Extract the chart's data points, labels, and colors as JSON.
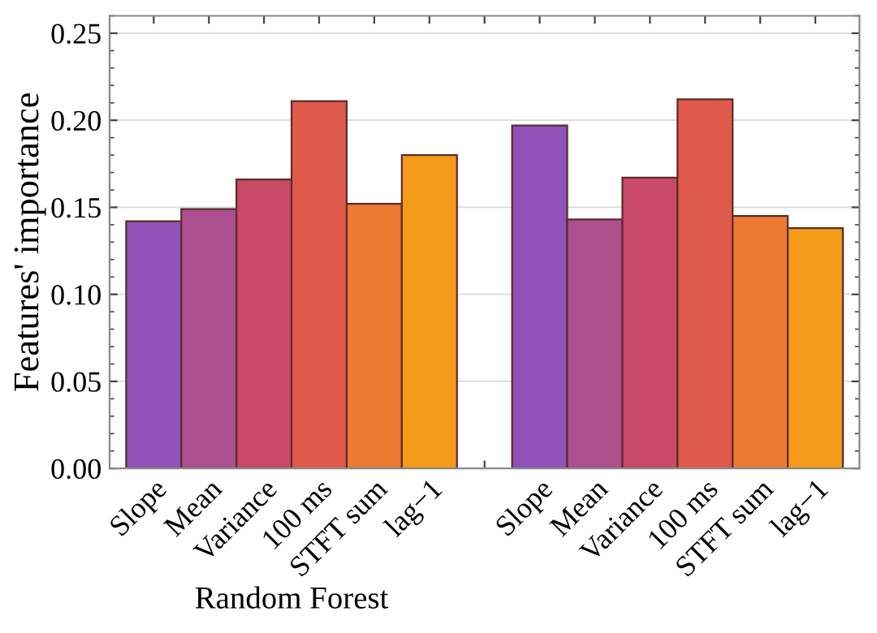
{
  "chart_data": {
    "type": "bar",
    "ylabel": "Features' importance",
    "categories": [
      "Slope",
      "Mean",
      "Variance",
      "100 ms",
      "STFT sum",
      "lag−1",
      null,
      "Slope",
      "Mean",
      "Variance",
      "100 ms",
      "STFT sum",
      "lag−1"
    ],
    "values": [
      0.142,
      0.149,
      0.166,
      0.211,
      0.152,
      0.18,
      null,
      0.197,
      0.143,
      0.167,
      0.212,
      0.145,
      0.138
    ],
    "colors": [
      "#8f52b8",
      "#ad4f8f",
      "#c84a66",
      "#e05a4b",
      "#ec7a33",
      "#f59b1a",
      null,
      "#8f52b8",
      "#ad4f8f",
      "#c84a66",
      "#e05a4b",
      "#ec7a33",
      "#f59b1a"
    ],
    "ylim": [
      0,
      0.26
    ],
    "yticks": [
      {
        "value": 0,
        "label": "0.00"
      },
      {
        "value": 0.05,
        "label": "0.05"
      },
      {
        "value": 0.1,
        "label": "0.10"
      },
      {
        "value": 0.15,
        "label": "0.15"
      },
      {
        "value": 0.2,
        "label": "0.20"
      },
      {
        "value": 0.25,
        "label": "0.25"
      }
    ],
    "grid": "y",
    "annotations": [
      "Random Forest"
    ]
  }
}
